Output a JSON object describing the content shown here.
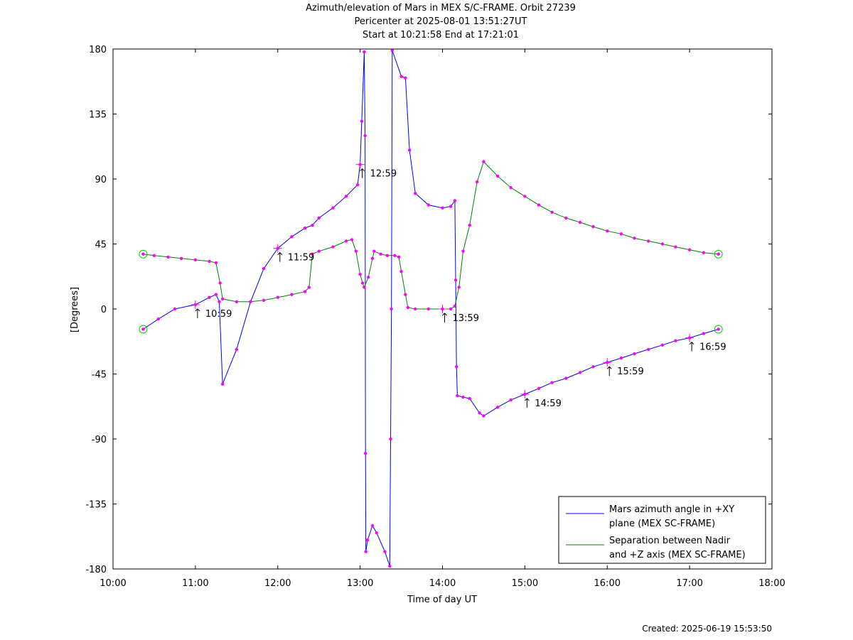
{
  "titles": {
    "line1": "Azimuth/elevation of Mars in MEX S/C-FRAME.  Orbit 27239",
    "line2": "Pericenter at 2025-08-01 13:51:27UT",
    "line3": "Start at 10:21:58 End at 17:21:01"
  },
  "footer": {
    "created": "Created: 2025-06-19 15:53:50"
  },
  "colors": {
    "azimuth": "#0000ff",
    "separation": "#008000",
    "marker": "#ff00ff",
    "endpoint": "#00cc00"
  },
  "chart_data": {
    "type": "line",
    "xlabel": "Time of day UT",
    "ylabel": "[Degrees]",
    "xlim": [
      10,
      18
    ],
    "ylim": [
      -180,
      180
    ],
    "xticks": [
      10,
      11,
      12,
      13,
      14,
      15,
      16,
      17,
      18
    ],
    "xtick_labels": [
      "10:00",
      "11:00",
      "12:00",
      "13:00",
      "14:00",
      "15:00",
      "16:00",
      "17:00",
      "18:00"
    ],
    "yticks": [
      180,
      135,
      90,
      45,
      0,
      -45,
      -90,
      -135,
      -180
    ],
    "ytick_labels": [
      "180",
      "135",
      "90",
      "45",
      "0",
      "-45",
      "-90",
      "-135",
      "-180"
    ],
    "legend_position": "bottom-right",
    "series": [
      {
        "name": "Mars azimuth angle in +XY plane (MEX SC-FRAME)",
        "legend_lines": [
          "Mars azimuth angle in +XY",
          "plane (MEX SC-FRAME)"
        ],
        "color": "#0000ff",
        "points": [
          [
            10.366,
            -14
          ],
          [
            10.55,
            -7
          ],
          [
            10.75,
            0
          ],
          [
            11.0,
            3
          ],
          [
            11.17,
            8
          ],
          [
            11.25,
            10
          ],
          [
            11.29,
            5
          ],
          [
            11.33,
            -52
          ],
          [
            11.5,
            -28
          ],
          [
            11.67,
            5
          ],
          [
            11.83,
            28
          ],
          [
            12.0,
            42
          ],
          [
            12.17,
            50
          ],
          [
            12.33,
            56
          ],
          [
            12.42,
            58
          ],
          [
            12.5,
            63
          ],
          [
            12.67,
            70
          ],
          [
            12.83,
            78
          ],
          [
            12.97,
            86
          ],
          [
            13.0,
            100
          ],
          [
            13.02,
            130
          ],
          [
            13.05,
            178
          ],
          [
            13.06,
            120
          ],
          [
            13.065,
            -100
          ],
          [
            13.07,
            -168
          ],
          [
            13.09,
            -160
          ],
          [
            13.15,
            -150
          ],
          [
            13.2,
            -155
          ],
          [
            13.3,
            -168
          ],
          [
            13.36,
            -178
          ],
          [
            13.37,
            -90
          ],
          [
            13.38,
            0
          ],
          [
            13.39,
            179
          ],
          [
            13.5,
            161
          ],
          [
            13.55,
            160
          ],
          [
            13.6,
            110
          ],
          [
            13.67,
            80
          ],
          [
            13.83,
            72
          ],
          [
            14.0,
            70
          ],
          [
            14.1,
            71
          ],
          [
            14.15,
            75
          ],
          [
            14.16,
            20
          ],
          [
            14.17,
            -40
          ],
          [
            14.18,
            -60
          ],
          [
            14.25,
            -61
          ],
          [
            14.33,
            -62
          ],
          [
            14.45,
            -72
          ],
          [
            14.5,
            -74
          ],
          [
            14.67,
            -68
          ],
          [
            14.83,
            -63
          ],
          [
            15.0,
            -59
          ],
          [
            15.17,
            -55
          ],
          [
            15.33,
            -51
          ],
          [
            15.5,
            -48
          ],
          [
            15.67,
            -44
          ],
          [
            15.83,
            -40
          ],
          [
            16.0,
            -37
          ],
          [
            16.17,
            -34
          ],
          [
            16.33,
            -31
          ],
          [
            16.5,
            -28
          ],
          [
            16.67,
            -25
          ],
          [
            16.83,
            -22
          ],
          [
            17.0,
            -20
          ],
          [
            17.17,
            -17
          ],
          [
            17.35,
            -14
          ]
        ],
        "time_markers": [
          {
            "t": 11.0,
            "label": "10:59"
          },
          {
            "t": 12.0,
            "label": "11:59"
          },
          {
            "t": 13.0,
            "label": "12:59"
          },
          {
            "t": 15.0,
            "label": "14:59"
          },
          {
            "t": 16.0,
            "label": "15:59"
          },
          {
            "t": 17.0,
            "label": "16:59"
          }
        ]
      },
      {
        "name": "Separation between Nadir and +Z axis (MEX SC-FRAME)",
        "legend_lines": [
          "Separation between Nadir",
          "and +Z axis (MEX SC-FRAME)"
        ],
        "color": "#008000",
        "points": [
          [
            10.366,
            38
          ],
          [
            10.5,
            37
          ],
          [
            10.67,
            36
          ],
          [
            10.83,
            35
          ],
          [
            11.0,
            34
          ],
          [
            11.17,
            33
          ],
          [
            11.25,
            32
          ],
          [
            11.3,
            18
          ],
          [
            11.33,
            7
          ],
          [
            11.5,
            5
          ],
          [
            11.67,
            5
          ],
          [
            11.83,
            6
          ],
          [
            12.0,
            8
          ],
          [
            12.17,
            10
          ],
          [
            12.33,
            12
          ],
          [
            12.38,
            15
          ],
          [
            12.42,
            38
          ],
          [
            12.5,
            40
          ],
          [
            12.67,
            43
          ],
          [
            12.83,
            47
          ],
          [
            12.9,
            48
          ],
          [
            12.95,
            40
          ],
          [
            13.0,
            24
          ],
          [
            13.03,
            18
          ],
          [
            13.05,
            15
          ],
          [
            13.1,
            22
          ],
          [
            13.15,
            35
          ],
          [
            13.17,
            40
          ],
          [
            13.25,
            38
          ],
          [
            13.33,
            37
          ],
          [
            13.42,
            37
          ],
          [
            13.47,
            36
          ],
          [
            13.5,
            26
          ],
          [
            13.55,
            10
          ],
          [
            13.58,
            1
          ],
          [
            13.67,
            0
          ],
          [
            13.83,
            0
          ],
          [
            14.0,
            0
          ],
          [
            14.1,
            0
          ],
          [
            14.15,
            2
          ],
          [
            14.2,
            15
          ],
          [
            14.25,
            40
          ],
          [
            14.33,
            58
          ],
          [
            14.42,
            88
          ],
          [
            14.5,
            102
          ],
          [
            14.67,
            92
          ],
          [
            14.83,
            84
          ],
          [
            15.0,
            78
          ],
          [
            15.17,
            72
          ],
          [
            15.33,
            67
          ],
          [
            15.5,
            63
          ],
          [
            15.67,
            60
          ],
          [
            15.83,
            57
          ],
          [
            16.0,
            54
          ],
          [
            16.17,
            52
          ],
          [
            16.33,
            49
          ],
          [
            16.5,
            47
          ],
          [
            16.67,
            45
          ],
          [
            16.83,
            43
          ],
          [
            17.0,
            41
          ],
          [
            17.17,
            39
          ],
          [
            17.35,
            38
          ]
        ],
        "time_markers": [
          {
            "t": 14.0,
            "label": "13:59"
          }
        ]
      }
    ]
  }
}
